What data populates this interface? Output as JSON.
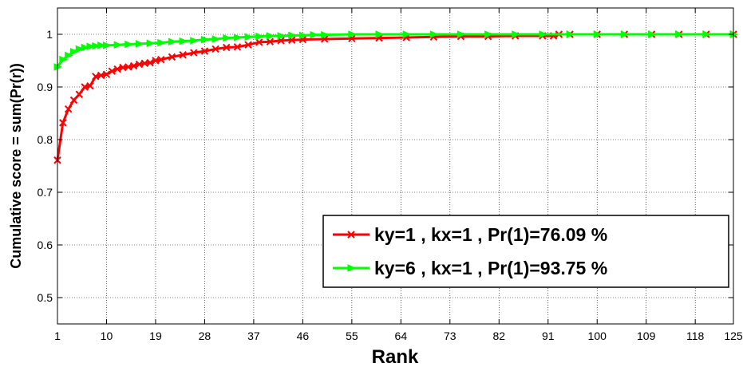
{
  "chart_data": {
    "type": "line",
    "title": "",
    "xlabel": "Rank",
    "ylabel": "Cumulative score = sum(Pr(r))",
    "xlim": [
      1,
      125
    ],
    "ylim": [
      0.45,
      1.05
    ],
    "x_ticks": [
      1,
      10,
      19,
      28,
      37,
      46,
      55,
      64,
      73,
      82,
      91,
      100,
      109,
      118,
      125
    ],
    "y_ticks": [
      0.5,
      0.6,
      0.7,
      0.8,
      0.9,
      1
    ],
    "y_tick_labels": [
      "0.5",
      "0.6",
      "0.7",
      "0.8",
      "0.9",
      "1"
    ],
    "grid": true,
    "legend_position": "bottom-right",
    "series": [
      {
        "name": "ky=1 , kx=1 , Pr(1)=76.09 %",
        "color": "#ff0000",
        "marker": "x",
        "x": [
          1,
          2,
          3,
          4,
          5,
          6,
          7,
          8,
          9,
          10,
          11,
          12,
          13,
          14,
          15,
          16,
          17,
          18,
          19,
          20,
          22,
          24,
          26,
          28,
          30,
          32,
          34,
          36,
          38,
          40,
          42,
          44,
          46,
          50,
          55,
          60,
          65,
          70,
          75,
          80,
          85,
          90,
          92,
          93,
          95,
          100,
          105,
          110,
          115,
          120,
          125
        ],
        "values": [
          0.761,
          0.832,
          0.858,
          0.875,
          0.886,
          0.9,
          0.902,
          0.92,
          0.922,
          0.924,
          0.93,
          0.934,
          0.937,
          0.938,
          0.94,
          0.943,
          0.945,
          0.946,
          0.95,
          0.952,
          0.957,
          0.961,
          0.965,
          0.968,
          0.972,
          0.975,
          0.976,
          0.98,
          0.985,
          0.986,
          0.988,
          0.989,
          0.99,
          0.991,
          0.992,
          0.993,
          0.994,
          0.995,
          0.996,
          0.996,
          0.997,
          0.997,
          0.997,
          1.0,
          1.0,
          1.0,
          1.0,
          1.0,
          1.0,
          1.0,
          1.0
        ]
      },
      {
        "name": "ky=6 , kx=1 , Pr(1)=93.75 %",
        "color": "#00ff00",
        "marker": "triangle-right",
        "x": [
          1,
          2,
          3,
          4,
          5,
          6,
          7,
          8,
          9,
          10,
          12,
          14,
          16,
          18,
          20,
          22,
          24,
          26,
          28,
          30,
          32,
          34,
          36,
          38,
          40,
          42,
          44,
          46,
          48,
          50,
          55,
          60,
          65,
          70,
          75,
          80,
          85,
          90,
          95,
          100,
          105,
          110,
          115,
          120,
          125
        ],
        "values": [
          0.938,
          0.952,
          0.96,
          0.967,
          0.972,
          0.975,
          0.977,
          0.978,
          0.979,
          0.979,
          0.98,
          0.981,
          0.982,
          0.983,
          0.984,
          0.986,
          0.987,
          0.988,
          0.99,
          0.991,
          0.993,
          0.994,
          0.995,
          0.996,
          0.997,
          0.997,
          0.998,
          0.998,
          0.999,
          0.999,
          1.0,
          1.0,
          1.0,
          1.0,
          1.0,
          1.0,
          1.0,
          1.0,
          1.0,
          1.0,
          1.0,
          1.0,
          1.0,
          1.0,
          1.0
        ]
      }
    ]
  }
}
